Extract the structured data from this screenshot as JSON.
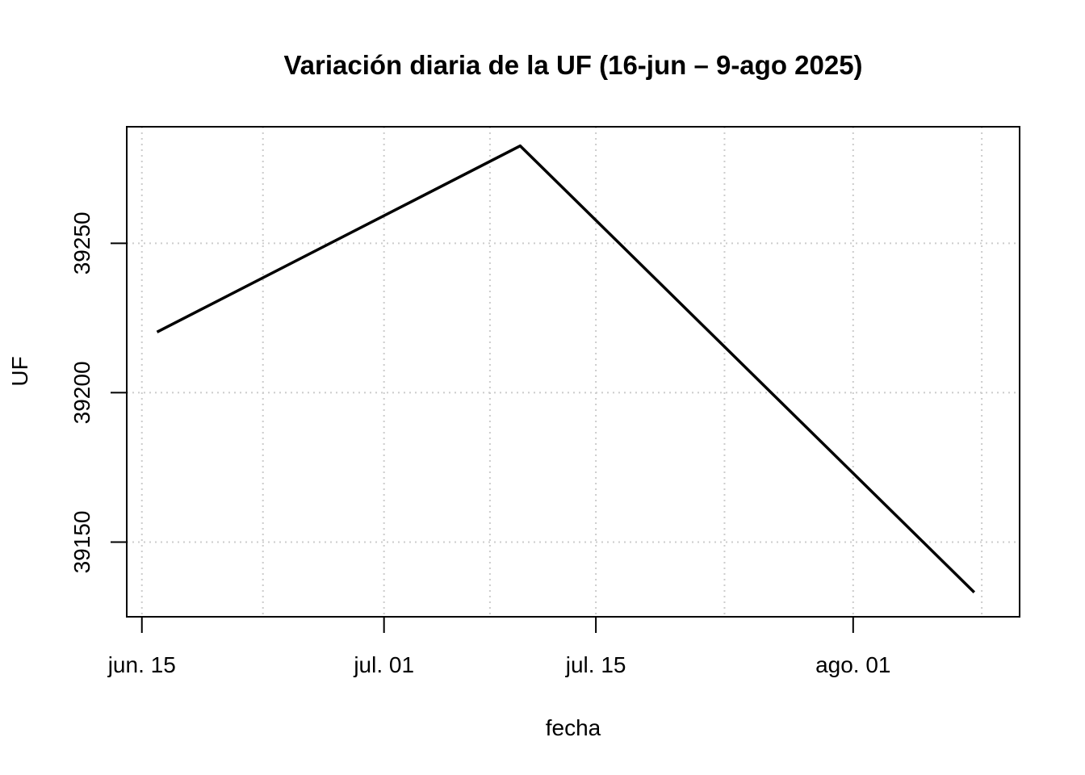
{
  "chart_data": {
    "type": "line",
    "title": "Variación diaria de la UF (16-jun – 9-ago 2025)",
    "xlabel": "fecha",
    "ylabel": "UF",
    "x_ticks": [
      {
        "date": "2025-06-15",
        "label": "jun. 15"
      },
      {
        "date": "2025-07-01",
        "label": "jul. 01"
      },
      {
        "date": "2025-07-15",
        "label": "jul. 15"
      },
      {
        "date": "2025-08-01",
        "label": "ago. 01"
      }
    ],
    "y_ticks": [
      39150,
      39200,
      39250
    ],
    "xlim": [
      "2025-06-14",
      "2025-08-12"
    ],
    "ylim": [
      39125,
      39289
    ],
    "grid": true,
    "series": [
      {
        "color": "#000000",
        "points": [
          {
            "x": "2025-06-16",
            "y": 39220.3
          },
          {
            "x": "2025-07-10",
            "y": 39282.6
          },
          {
            "x": "2025-08-09",
            "y": 39133.2
          }
        ]
      }
    ]
  }
}
